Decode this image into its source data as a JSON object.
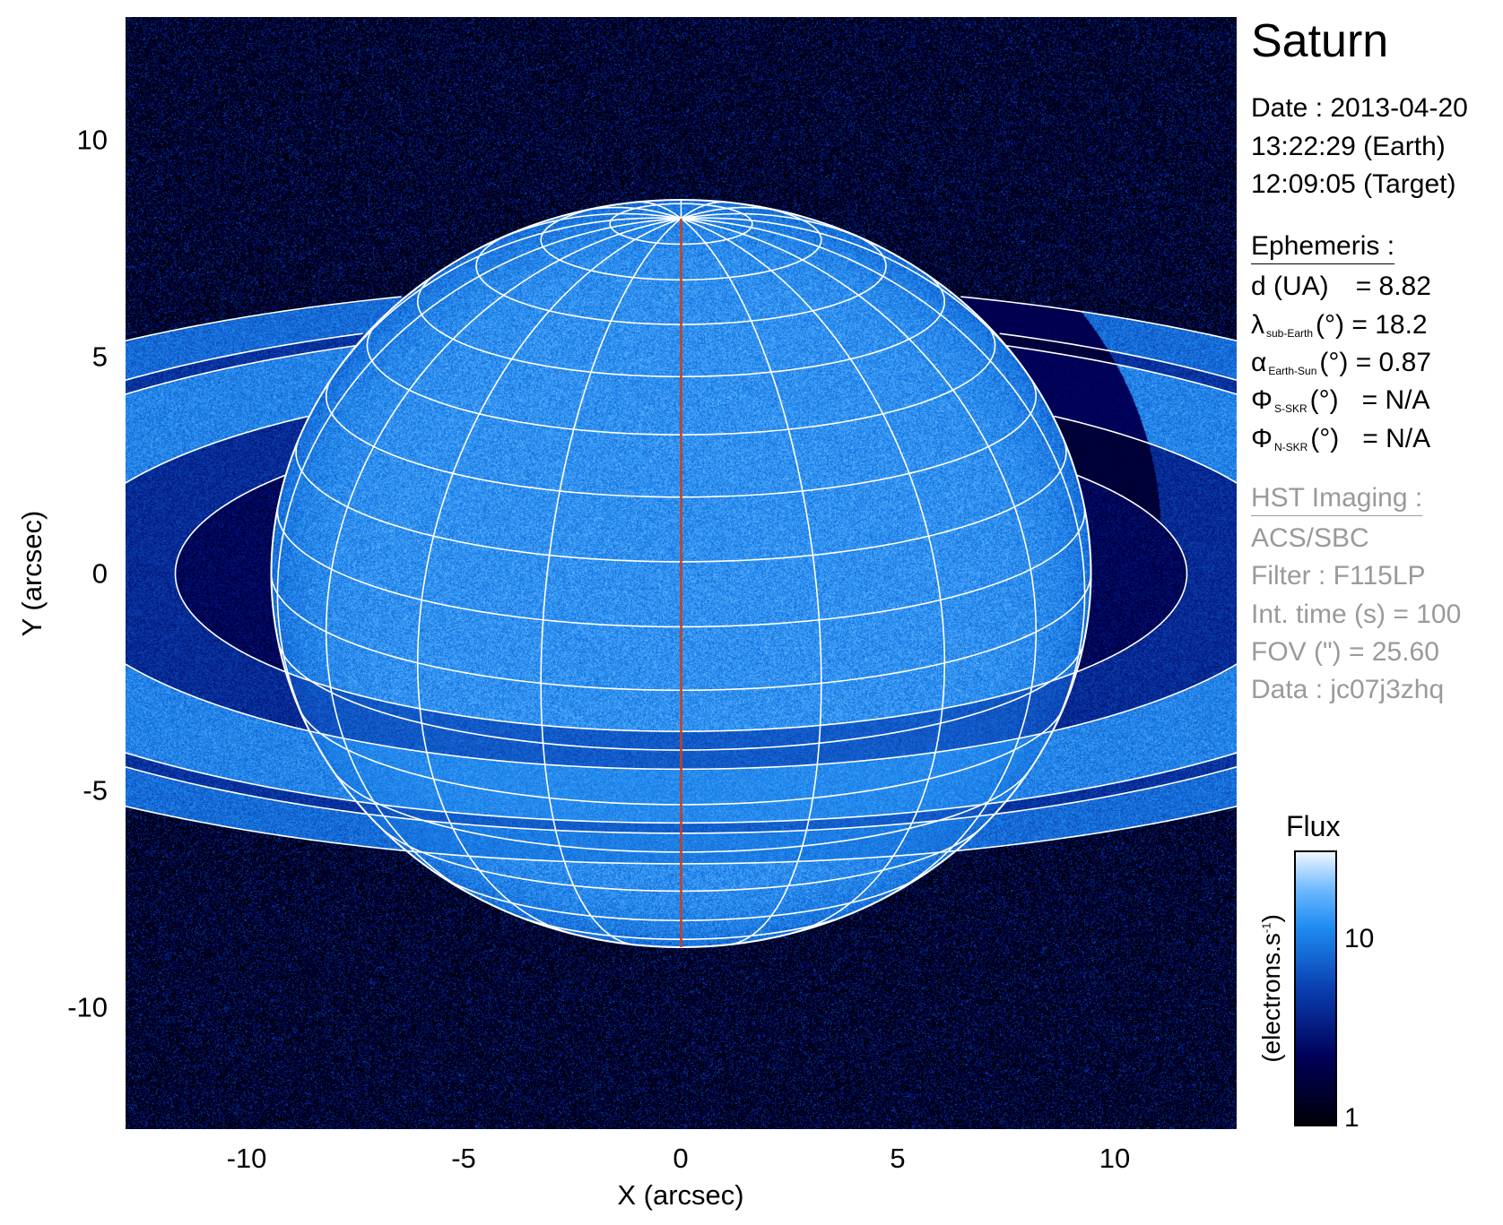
{
  "chart_data": {
    "type": "heatmap",
    "title": "Saturn",
    "xlabel": "X (arcsec)",
    "ylabel": "Y (arcsec)",
    "xlim": [
      -12.8,
      12.8
    ],
    "ylim": [
      -12.8,
      12.8
    ],
    "xticks": [
      "-10",
      "-5",
      "0",
      "5",
      "10"
    ],
    "yticks": [
      "10",
      "5",
      "0",
      "-5",
      "-10"
    ],
    "grid": false,
    "colorbar": {
      "title": "Flux",
      "label": "(electrons.s",
      "label_sup": "-1",
      "label_close": ")",
      "scale": "log",
      "ticks": [
        "10",
        "1"
      ],
      "range": [
        1,
        30
      ],
      "colormap": [
        "#000008",
        "#00005a",
        "#0a3fb0",
        "#1e8af0",
        "#6ab8ff",
        "#eef6ff"
      ]
    },
    "overlay": {
      "grid_color": "#ffffff",
      "central_meridian_color": "#c8401a",
      "sub_earth_latitude_deg": 18.2
    }
  },
  "info": {
    "title": "Saturn",
    "date": "Date : 2013-04-20",
    "time_earth": "13:22:29 (Earth)",
    "time_target": "12:09:05 (Target)",
    "ephemeris_heading": "Ephemeris :",
    "ephemeris": [
      {
        "symbol": "d (UA)",
        "sub": "",
        "unit": "",
        "value": "= 8.82"
      },
      {
        "symbol": "λ",
        "sub": "sub-Earth",
        "unit": "(°)",
        "value": "= 18.2"
      },
      {
        "symbol": "α",
        "sub": "Earth-Sun",
        "unit": "(°)",
        "value": "= 0.87"
      },
      {
        "symbol": "Φ",
        "sub": "S-SKR",
        "unit": "(°)",
        "value": "= N/A"
      },
      {
        "symbol": "Φ",
        "sub": "N-SKR",
        "unit": "(°)",
        "value": "= N/A"
      }
    ],
    "imaging_heading": "HST Imaging :",
    "instrument": "ACS/SBC",
    "filter": "Filter : F115LP",
    "int_time": "Int. time (s) = 100",
    "fov": "FOV (\") = 25.60",
    "data_id": "Data : jc07j3zhq"
  }
}
